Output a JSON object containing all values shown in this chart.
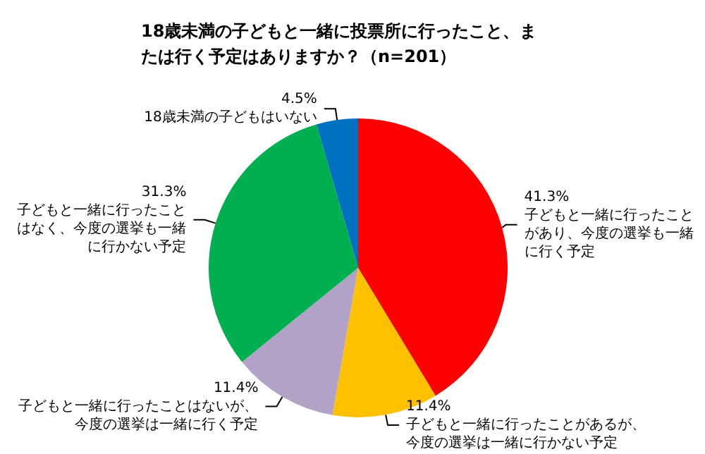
{
  "chart_data": {
    "type": "pie",
    "title": "18歳未満の子どもと一緒に投票所に行ったこと、または行く予定はありますか？（n=201）",
    "categories": [
      "子どもと一緒に行ったことがあり、今度の選挙も一緒に行く予定",
      "子どもと一緒に行ったことがあるが、今度の選挙は一緒に行かない予定",
      "子どもと一緒に行ったことはないが、今度の選挙は一緒に行く予定",
      "子どもと一緒に行ったことはなく、今度の選挙も一緒に行かない予定",
      "18歳未満の子どもはいない"
    ],
    "values": [
      41.3,
      11.4,
      11.4,
      31.3,
      4.5
    ],
    "value_labels": [
      "41.3%",
      "11.4%",
      "11.4%",
      "31.3%",
      "4.5%"
    ],
    "colors": [
      "#ff0000",
      "#ffc000",
      "#b3a2c7",
      "#00b050",
      "#0070c0"
    ],
    "legend": false
  }
}
